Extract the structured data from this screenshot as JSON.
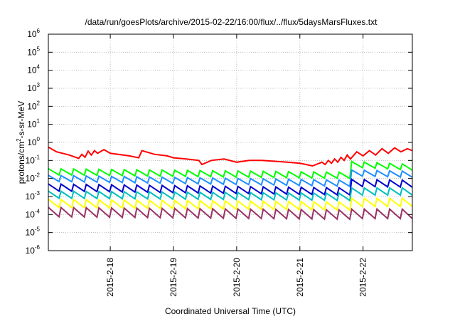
{
  "chart_data": {
    "type": "line",
    "title": "/data/run/goesPlots/archive/2015-02-22/16:00/flux/../flux/5daysMarsFluxes.txt",
    "xlabel": "Coordinated Universal Time (UTC)",
    "ylabel": "protons/cm2-s-sr-MeV",
    "ylabel_parts": {
      "base": "protons/cm",
      "sup": "2",
      "rest": "-s-sr-MeV"
    },
    "yscale": "log",
    "ylim": [
      1e-06,
      1000000.0
    ],
    "xlim": [
      -0.98,
      4.78
    ],
    "x_units": "days relative to 2015-2-18 00:00 UTC",
    "grid": true,
    "legend": "none",
    "y_ticks": [
      {
        "exp": -6,
        "base": "10",
        "sup": "-6"
      },
      {
        "exp": -5,
        "base": "10",
        "sup": "-5"
      },
      {
        "exp": -4,
        "base": "10",
        "sup": "-4"
      },
      {
        "exp": -3,
        "base": "10",
        "sup": "-3"
      },
      {
        "exp": -2,
        "base": "10",
        "sup": "-2"
      },
      {
        "exp": -1,
        "base": "10",
        "sup": "-1"
      },
      {
        "exp": 0,
        "base": "10",
        "sup": "0"
      },
      {
        "exp": 1,
        "base": "10",
        "sup": "1"
      },
      {
        "exp": 2,
        "base": "10",
        "sup": "2"
      },
      {
        "exp": 3,
        "base": "10",
        "sup": "3"
      },
      {
        "exp": 4,
        "base": "10",
        "sup": "4"
      },
      {
        "exp": 5,
        "base": "10",
        "sup": "5"
      },
      {
        "exp": 6,
        "base": "10",
        "sup": "6"
      }
    ],
    "x_ticks": [
      {
        "x": 0,
        "label": "2015-2-18"
      },
      {
        "x": 1,
        "label": "2015-2-19"
      },
      {
        "x": 2,
        "label": "2015-2-20"
      },
      {
        "x": 3,
        "label": "2015-2-21"
      },
      {
        "x": 4,
        "label": "2015-2-22"
      }
    ],
    "series": [
      {
        "color": "#ff0000",
        "x": [
          -0.98,
          -0.85,
          -0.65,
          -0.5,
          -0.45,
          -0.4,
          -0.35,
          -0.3,
          -0.25,
          -0.2,
          -0.1,
          0.0,
          0.3,
          0.45,
          0.5,
          0.7,
          0.9,
          1.0,
          1.2,
          1.4,
          1.45,
          1.6,
          1.8,
          2.0,
          2.2,
          2.4,
          2.6,
          2.8,
          3.0,
          3.2,
          3.35,
          3.4,
          3.45,
          3.5,
          3.55,
          3.6,
          3.65,
          3.7,
          3.75,
          3.8,
          3.9,
          4.0,
          4.1,
          4.2,
          4.3,
          4.4,
          4.5,
          4.6,
          4.7,
          4.78
        ],
        "values": [
          0.55,
          0.3,
          0.2,
          0.13,
          0.22,
          0.15,
          0.33,
          0.2,
          0.35,
          0.25,
          0.4,
          0.25,
          0.18,
          0.14,
          0.35,
          0.22,
          0.18,
          0.14,
          0.12,
          0.1,
          0.06,
          0.1,
          0.12,
          0.08,
          0.1,
          0.1,
          0.09,
          0.08,
          0.07,
          0.05,
          0.08,
          0.06,
          0.1,
          0.07,
          0.12,
          0.08,
          0.15,
          0.1,
          0.2,
          0.12,
          0.3,
          0.18,
          0.35,
          0.2,
          0.45,
          0.25,
          0.5,
          0.3,
          0.45,
          0.35
        ]
      },
      {
        "color": "#00ff00",
        "profile": "sawtooth",
        "start": 0.035,
        "end": 0.022,
        "jump_x": 3.78,
        "after_jump": 0.09,
        "end_after": 0.06,
        "ratio": 0.45,
        "period": 0.2
      },
      {
        "color": "#1e8fff",
        "profile": "sawtooth",
        "start": 0.015,
        "end": 0.008,
        "jump_x": 3.78,
        "after_jump": 0.03,
        "end_after": 0.025,
        "ratio": 0.45,
        "period": 0.2
      },
      {
        "color": "#0000cd",
        "profile": "sawtooth",
        "start": 0.005,
        "end": 0.003,
        "jump_x": 3.78,
        "after_jump": 0.009,
        "end_after": 0.008,
        "ratio": 0.4,
        "period": 0.2
      },
      {
        "color": "#00bfbf",
        "profile": "sawtooth",
        "start": 0.002,
        "end": 0.0015,
        "jump_x": 3.78,
        "after_jump": 0.003,
        "end_after": 0.003,
        "ratio": 0.4,
        "period": 0.2
      },
      {
        "color": "#ffff00",
        "profile": "sawtooth",
        "start": 0.0007,
        "end": 0.0005,
        "jump_x": 3.78,
        "after_jump": 0.0008,
        "end_after": 0.0008,
        "ratio": 0.35,
        "period": 0.2
      },
      {
        "color": "#993366",
        "profile": "sawtooth",
        "start": 0.00025,
        "end": 0.00018,
        "jump_x": 3.78,
        "after_jump": 0.0002,
        "end_after": 0.0002,
        "ratio": 0.3,
        "period": 0.2
      }
    ]
  }
}
